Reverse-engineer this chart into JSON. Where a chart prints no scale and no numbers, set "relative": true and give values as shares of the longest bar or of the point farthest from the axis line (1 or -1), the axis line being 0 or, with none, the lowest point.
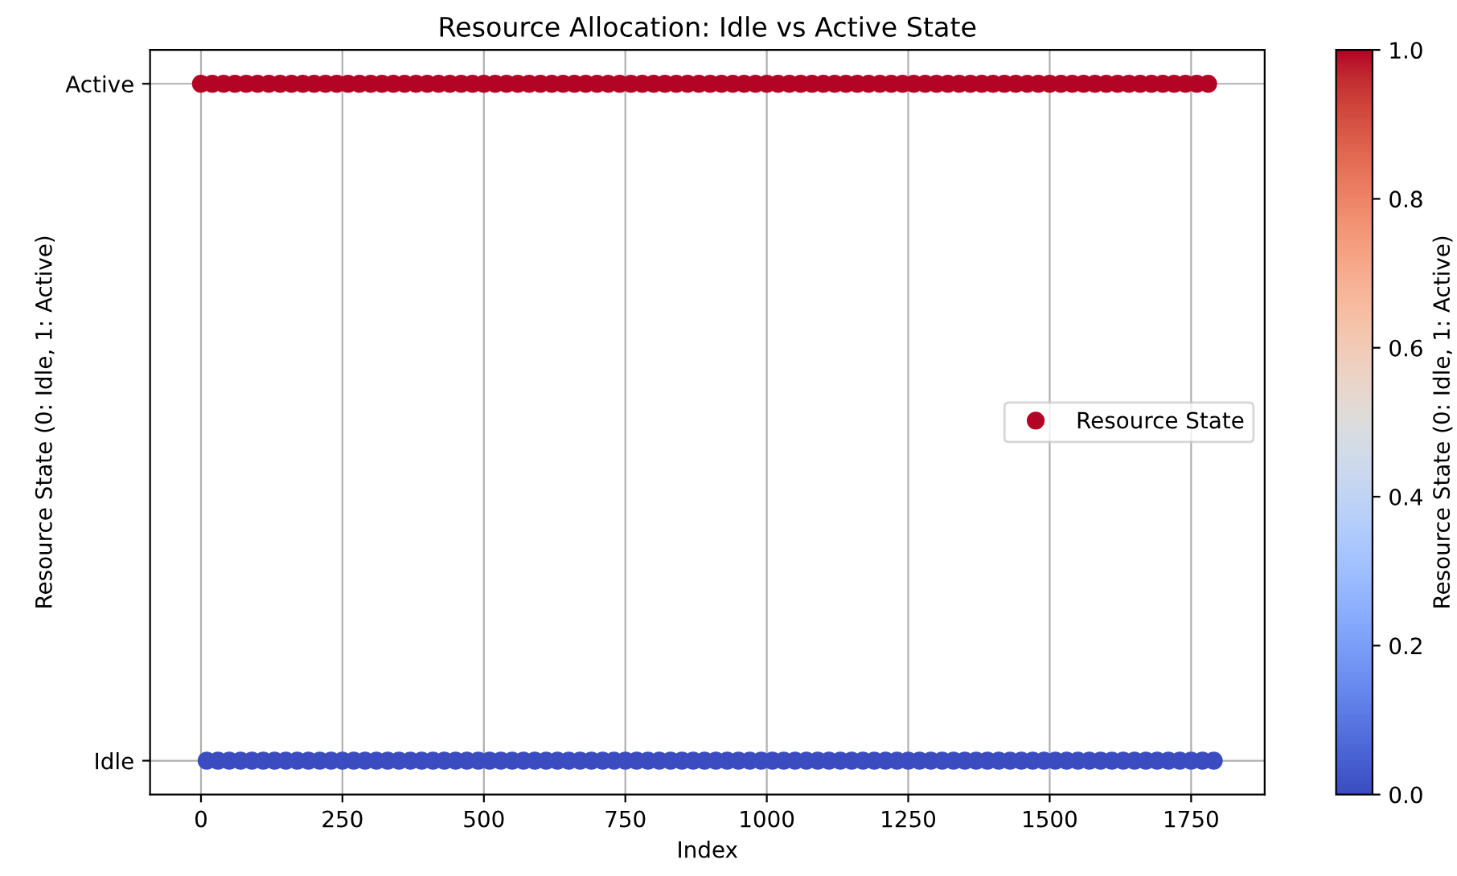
{
  "chart_data": {
    "type": "scatter",
    "title": "Resource Allocation: Idle vs Active State",
    "xlabel": "Index",
    "ylabel": "Resource State (0: Idle, 1: Active)",
    "clabel": "Resource State (0: Idle, 1: Active)",
    "relative": true,
    "annotations": [
      "Active",
      "Idle"
    ],
    "series": [
      {
        "name": "Resource State",
        "colors": [
          "#b40426",
          "#3b4cc0",
          "#b40426",
          "#3b4cc0",
          "#b40426",
          "#3b4cc0",
          "#b40426",
          "#3b4cc0",
          "#b40426",
          "#3b4cc0",
          "#b40426",
          "#3b4cc0",
          "#b40426",
          "#3b4cc0",
          "#b40426",
          "#3b4cc0",
          "#b40426",
          "#3b4cc0",
          "#b40426",
          "#3b4cc0",
          "#b40426",
          "#3b4cc0",
          "#b40426",
          "#3b4cc0",
          "#b40426",
          "#3b4cc0",
          "#b40426",
          "#3b4cc0",
          "#b40426",
          "#3b4cc0",
          "#b40426",
          "#3b4cc0",
          "#b40426",
          "#3b4cc0",
          "#b40426",
          "#3b4cc0",
          "#b40426",
          "#3b4cc0",
          "#b40426",
          "#3b4cc0",
          "#b40426",
          "#3b4cc0",
          "#b40426",
          "#3b4cc0",
          "#b40426",
          "#3b4cc0",
          "#b40426",
          "#3b4cc0",
          "#b40426",
          "#3b4cc0",
          "#b40426",
          "#3b4cc0",
          "#b40426",
          "#3b4cc0",
          "#b40426",
          "#3b4cc0",
          "#b40426",
          "#3b4cc0",
          "#b40426",
          "#3b4cc0",
          "#b40426",
          "#3b4cc0",
          "#b40426",
          "#3b4cc0",
          "#b40426",
          "#3b4cc0",
          "#b40426",
          "#3b4cc0",
          "#b40426",
          "#3b4cc0",
          "#b40426",
          "#3b4cc0",
          "#b40426",
          "#3b4cc0",
          "#b40426",
          "#3b4cc0",
          "#b40426",
          "#3b4cc0",
          "#b40426",
          "#3b4cc0",
          "#b40426",
          "#3b4cc0",
          "#b40426",
          "#3b4cc0",
          "#b40426",
          "#3b4cc0",
          "#b40426",
          "#3b4cc0",
          "#b40426",
          "#3b4cc0",
          "#b40426",
          "#3b4cc0",
          "#b40426",
          "#3b4cc0",
          "#b40426",
          "#3b4cc0",
          "#b40426",
          "#3b4cc0",
          "#b40426",
          "#3b4cc0",
          "#b40426",
          "#3b4cc0",
          "#b40426",
          "#3b4cc0",
          "#b40426",
          "#3b4cc0",
          "#b40426",
          "#3b4cc0",
          "#b40426",
          "#3b4cc0",
          "#b40426",
          "#3b4cc0",
          "#b40426",
          "#3b4cc0",
          "#b40426",
          "#3b4cc0",
          "#b40426",
          "#3b4cc0",
          "#b40426",
          "#3b4cc0",
          "#b40426",
          "#3b4cc0",
          "#b40426",
          "#3b4cc0",
          "#b40426",
          "#3b4cc0",
          "#b40426",
          "#3b4cc0",
          "#b40426",
          "#3b4cc0",
          "#b40426",
          "#3b4cc0",
          "#b40426",
          "#3b4cc0",
          "#b40426",
          "#3b4cc0",
          "#b40426",
          "#3b4cc0",
          "#b40426",
          "#3b4cc0",
          "#b40426",
          "#3b4cc0",
          "#b40426",
          "#3b4cc0",
          "#b40426",
          "#3b4cc0",
          "#b40426",
          "#3b4cc0",
          "#b40426",
          "#3b4cc0",
          "#b40426",
          "#3b4cc0",
          "#b40426",
          "#3b4cc0",
          "#b40426",
          "#3b4cc0",
          "#b40426",
          "#3b4cc0",
          "#b40426",
          "#3b4cc0",
          "#b40426",
          "#3b4cc0",
          "#b40426",
          "#3b4cc0",
          "#b40426",
          "#3b4cc0",
          "#b40426",
          "#3b4cc0",
          "#b40426",
          "#3b4cc0",
          "#b40426",
          "#3b4cc0",
          "#b40426",
          "#3b4cc0",
          "#b40426",
          "#3b4cc0",
          "#b40426",
          "#3b4cc0",
          "#b40426",
          "#3b4cc0"
        ],
        "x": [
          0,
          10,
          20,
          30,
          40,
          50,
          60,
          70,
          80,
          90,
          100,
          110,
          120,
          130,
          140,
          150,
          160,
          170,
          180,
          190,
          200,
          210,
          220,
          230,
          240,
          250,
          260,
          270,
          280,
          290,
          300,
          310,
          320,
          330,
          340,
          350,
          360,
          370,
          380,
          390,
          400,
          410,
          420,
          430,
          440,
          450,
          460,
          470,
          480,
          490,
          500,
          510,
          520,
          530,
          540,
          550,
          560,
          570,
          580,
          590,
          600,
          610,
          620,
          630,
          640,
          650,
          660,
          670,
          680,
          690,
          700,
          710,
          720,
          730,
          740,
          750,
          760,
          770,
          780,
          790,
          800,
          810,
          820,
          830,
          840,
          850,
          860,
          870,
          880,
          890,
          900,
          910,
          920,
          930,
          940,
          950,
          960,
          970,
          980,
          990,
          1000,
          1010,
          1020,
          1030,
          1040,
          1050,
          1060,
          1070,
          1080,
          1090,
          1100,
          1110,
          1120,
          1130,
          1140,
          1150,
          1160,
          1170,
          1180,
          1190,
          1200,
          1210,
          1220,
          1230,
          1240,
          1250,
          1260,
          1270,
          1280,
          1290,
          1300,
          1310,
          1320,
          1330,
          1340,
          1350,
          1360,
          1370,
          1380,
          1390,
          1400,
          1410,
          1420,
          1430,
          1440,
          1450,
          1460,
          1470,
          1480,
          1490,
          1500,
          1510,
          1520,
          1530,
          1540,
          1550,
          1560,
          1570,
          1580,
          1590,
          1600,
          1610,
          1620,
          1630,
          1640,
          1650,
          1660,
          1670,
          1680,
          1690,
          1700,
          1710,
          1720,
          1730,
          1740,
          1750,
          1760,
          1770,
          1780,
          1790
        ],
        "values": [
          1,
          0,
          1,
          0,
          1,
          0,
          1,
          0,
          1,
          0,
          1,
          0,
          1,
          0,
          1,
          0,
          1,
          0,
          1,
          0,
          1,
          0,
          1,
          0,
          1,
          0,
          1,
          0,
          1,
          0,
          1,
          0,
          1,
          0,
          1,
          0,
          1,
          0,
          1,
          0,
          1,
          0,
          1,
          0,
          1,
          0,
          1,
          0,
          1,
          0,
          1,
          0,
          1,
          0,
          1,
          0,
          1,
          0,
          1,
          0,
          1,
          0,
          1,
          0,
          1,
          0,
          1,
          0,
          1,
          0,
          1,
          0,
          1,
          0,
          1,
          0,
          1,
          0,
          1,
          0,
          1,
          0,
          1,
          0,
          1,
          0,
          1,
          0,
          1,
          0,
          1,
          0,
          1,
          0,
          1,
          0,
          1,
          0,
          1,
          0,
          1,
          0,
          1,
          0,
          1,
          0,
          1,
          0,
          1,
          0,
          1,
          0,
          1,
          0,
          1,
          0,
          1,
          0,
          1,
          0,
          1,
          0,
          1,
          0,
          1,
          0,
          1,
          0,
          1,
          0,
          1,
          0,
          1,
          0,
          1,
          0,
          1,
          0,
          1,
          0,
          1,
          0,
          1,
          0,
          1,
          0,
          1,
          0,
          1,
          0,
          1,
          0,
          1,
          0,
          1,
          0,
          1,
          0,
          1,
          0,
          1,
          0,
          1,
          0,
          1,
          0,
          1,
          0,
          1,
          0,
          1,
          0,
          1,
          0,
          1,
          0,
          1,
          0,
          1,
          0
        ]
      }
    ],
    "xlim": [
      -90,
      1880
    ],
    "xticks": [
      0,
      250,
      500,
      750,
      1000,
      1250,
      1500,
      1750
    ],
    "clim": [
      0,
      1
    ],
    "cticks": [
      {
        "value": 0,
        "label": "0.0"
      },
      0.2,
      0.4,
      0.6,
      0.8,
      {
        "value": 1,
        "label": "1.0"
      }
    ],
    "grid": true,
    "legend": "center right",
    "marker": "circle"
  }
}
